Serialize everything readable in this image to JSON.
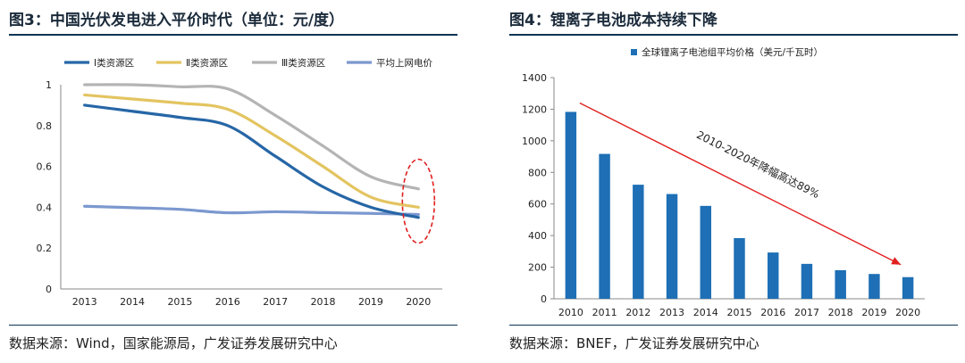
{
  "left": {
    "title": "图3：中国光伏发电进入平价时代（单位：元/度）",
    "source": "数据来源：Wind，国家能源局，广发证券发展研究中心"
  },
  "right": {
    "title": "图4：锂离子电池成本持续下降",
    "source": "数据来源：BNEF，广发证券发展研究中心"
  },
  "chart_data": [
    {
      "type": "line",
      "title": "中国光伏发电进入平价时代（单位：元/度）",
      "x": [
        "2013",
        "2014",
        "2015",
        "2016",
        "2017",
        "2018",
        "2019",
        "2020"
      ],
      "ylim": [
        0,
        1
      ],
      "yticks": [
        0,
        0.2,
        0.4,
        0.6,
        0.8,
        1
      ],
      "ytick_labels": [
        "0",
        "0.2",
        "0.4",
        "0.6",
        "0.8",
        "1"
      ],
      "legend_position": "top",
      "series": [
        {
          "name": "Ⅰ类资源区",
          "color": "#2666a6",
          "values": [
            0.9,
            0.87,
            0.84,
            0.8,
            0.65,
            0.5,
            0.4,
            0.35
          ]
        },
        {
          "name": "Ⅱ类资源区",
          "color": "#e3c460",
          "values": [
            0.95,
            0.93,
            0.91,
            0.88,
            0.75,
            0.6,
            0.45,
            0.4
          ]
        },
        {
          "name": "Ⅲ类资源区",
          "color": "#b4b4b4",
          "values": [
            1.0,
            1.0,
            0.99,
            0.98,
            0.85,
            0.7,
            0.55,
            0.49
          ]
        },
        {
          "name": "平均上网电价",
          "color": "#7b98cf",
          "values": [
            0.405,
            0.398,
            0.39,
            0.373,
            0.378,
            0.374,
            0.37,
            0.365
          ]
        }
      ],
      "annotation": "dashed red ellipse highlighting 2020 values"
    },
    {
      "type": "bar",
      "title": "锂离子电池成本持续下降",
      "series_name": "全球锂离子电池组平均价格（美元/千瓦时）",
      "color": "#1e6fb5",
      "categories": [
        "2010",
        "2011",
        "2012",
        "2013",
        "2014",
        "2015",
        "2016",
        "2017",
        "2018",
        "2019",
        "2020"
      ],
      "values": [
        1183,
        917,
        722,
        663,
        588,
        384,
        293,
        221,
        181,
        157,
        137
      ],
      "ylim": [
        0,
        1400
      ],
      "yticks": [
        0,
        200,
        400,
        600,
        800,
        1000,
        1200,
        1400
      ],
      "annotation": "2010-2020年降幅高达89%",
      "arrow_color": "#e02020"
    }
  ]
}
